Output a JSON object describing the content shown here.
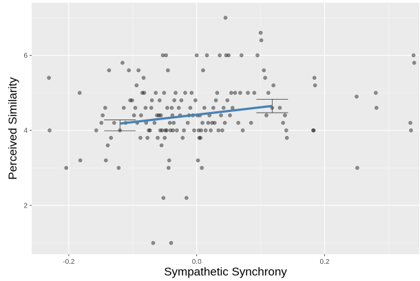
{
  "chart_data": {
    "type": "scatter",
    "title": "",
    "xlabel": "Sympathetic Synchrony",
    "ylabel": "Perceived Similarity",
    "xlim": [
      -0.258,
      0.348
    ],
    "ylim": [
      0.7,
      7.4
    ],
    "x_ticks": [
      -0.2,
      0.0,
      0.2
    ],
    "x_tick_labels": [
      "-0.2",
      "0.0",
      "0.2"
    ],
    "y_ticks": [
      2,
      4,
      6
    ],
    "y_tick_labels": [
      "2",
      "4",
      "6"
    ],
    "grid": true,
    "panel_background": "#ebebeb",
    "point_color": "#000000",
    "point_opacity": 0.42,
    "fit_line": {
      "color": "#4682b4",
      "start": [
        -0.12,
        4.18
      ],
      "end": [
        0.118,
        4.65
      ]
    },
    "error_bars": [
      {
        "x": -0.12,
        "low": 3.99,
        "high": 4.28
      },
      {
        "x": 0.118,
        "low": 4.47,
        "high": 4.83
      }
    ],
    "points": [
      [
        -0.231,
        5.4
      ],
      [
        -0.23,
        4.0
      ],
      [
        -0.204,
        3.0
      ],
      [
        -0.183,
        5.0
      ],
      [
        -0.182,
        3.2
      ],
      [
        -0.157,
        4.0
      ],
      [
        -0.149,
        4.2
      ],
      [
        -0.147,
        4.4
      ],
      [
        -0.143,
        4.6
      ],
      [
        -0.142,
        3.2
      ],
      [
        -0.139,
        3.6
      ],
      [
        -0.137,
        5.6
      ],
      [
        -0.134,
        3.8
      ],
      [
        -0.129,
        4.2
      ],
      [
        -0.122,
        3.0
      ],
      [
        -0.12,
        4.0
      ],
      [
        -0.116,
        5.8
      ],
      [
        -0.114,
        4.6
      ],
      [
        -0.111,
        4.2
      ],
      [
        -0.106,
        5.6
      ],
      [
        -0.104,
        4.8
      ],
      [
        -0.101,
        4.8
      ],
      [
        -0.098,
        4.4
      ],
      [
        -0.096,
        4.6
      ],
      [
        -0.094,
        5.2
      ],
      [
        -0.093,
        4.2
      ],
      [
        -0.091,
        5.6
      ],
      [
        -0.088,
        3.8
      ],
      [
        -0.087,
        4.4
      ],
      [
        -0.085,
        5.0
      ],
      [
        -0.083,
        5.4
      ],
      [
        -0.082,
        5.0
      ],
      [
        -0.08,
        4.6
      ],
      [
        -0.079,
        4.2
      ],
      [
        -0.077,
        3.8
      ],
      [
        -0.075,
        4.0
      ],
      [
        -0.073,
        4.0
      ],
      [
        -0.071,
        4.6
      ],
      [
        -0.07,
        4.8
      ],
      [
        -0.068,
        1.0
      ],
      [
        -0.066,
        4.2
      ],
      [
        -0.064,
        5.0
      ],
      [
        -0.062,
        4.4
      ],
      [
        -0.061,
        3.8
      ],
      [
        -0.059,
        4.4
      ],
      [
        -0.058,
        4.8
      ],
      [
        -0.057,
        4.0
      ],
      [
        -0.056,
        4.4
      ],
      [
        -0.055,
        3.6
      ],
      [
        -0.054,
        4.0
      ],
      [
        -0.053,
        6.0
      ],
      [
        -0.052,
        2.2
      ],
      [
        -0.051,
        5.0
      ],
      [
        -0.05,
        3.8
      ],
      [
        -0.049,
        4.0
      ],
      [
        -0.048,
        6.0
      ],
      [
        -0.047,
        4.0
      ],
      [
        -0.046,
        4.6
      ],
      [
        -0.045,
        5.6
      ],
      [
        -0.044,
        3.0
      ],
      [
        -0.043,
        3.2
      ],
      [
        -0.042,
        4.2
      ],
      [
        -0.041,
        4.0
      ],
      [
        -0.04,
        1.0
      ],
      [
        -0.039,
        4.6
      ],
      [
        -0.038,
        4.4
      ],
      [
        -0.037,
        4.0
      ],
      [
        -0.036,
        4.2
      ],
      [
        -0.035,
        4.8
      ],
      [
        -0.033,
        5.0
      ],
      [
        -0.031,
        4.0
      ],
      [
        -0.028,
        4.6
      ],
      [
        -0.026,
        4.4
      ],
      [
        -0.024,
        4.8
      ],
      [
        -0.022,
        3.8
      ],
      [
        -0.02,
        4.0
      ],
      [
        -0.018,
        5.0
      ],
      [
        -0.016,
        2.2
      ],
      [
        -0.014,
        4.2
      ],
      [
        -0.012,
        4.4
      ],
      [
        -0.01,
        4.6
      ],
      [
        -0.008,
        5.0
      ],
      [
        -0.006,
        4.4
      ],
      [
        -0.004,
        4.0
      ],
      [
        -0.002,
        4.8
      ],
      [
        0.0,
        6.0
      ],
      [
        0.001,
        4.4
      ],
      [
        0.002,
        3.2
      ],
      [
        0.003,
        4.0
      ],
      [
        0.004,
        3.8
      ],
      [
        0.005,
        4.4
      ],
      [
        0.006,
        3.8
      ],
      [
        0.007,
        4.0
      ],
      [
        0.008,
        3.0
      ],
      [
        0.009,
        4.2
      ],
      [
        0.01,
        5.6
      ],
      [
        0.012,
        4.6
      ],
      [
        0.014,
        4.0
      ],
      [
        0.016,
        6.0
      ],
      [
        0.018,
        4.2
      ],
      [
        0.02,
        4.4
      ],
      [
        0.022,
        4.0
      ],
      [
        0.024,
        4.2
      ],
      [
        0.026,
        4.6
      ],
      [
        0.028,
        4.2
      ],
      [
        0.03,
        4.8
      ],
      [
        0.032,
        5.0
      ],
      [
        0.034,
        4.0
      ],
      [
        0.036,
        6.0
      ],
      [
        0.038,
        4.4
      ],
      [
        0.04,
        4.0
      ],
      [
        0.042,
        4.6
      ],
      [
        0.044,
        4.2
      ],
      [
        0.045,
        7.0
      ],
      [
        0.046,
        6.0
      ],
      [
        0.048,
        4.8
      ],
      [
        0.05,
        6.0
      ],
      [
        0.052,
        4.4
      ],
      [
        0.054,
        5.0
      ],
      [
        0.056,
        4.6
      ],
      [
        0.06,
        5.0
      ],
      [
        0.065,
        4.2
      ],
      [
        0.068,
        5.0
      ],
      [
        0.07,
        6.0
      ],
      [
        0.072,
        4.0
      ],
      [
        0.08,
        5.0
      ],
      [
        0.085,
        4.2
      ],
      [
        0.09,
        5.0
      ],
      [
        0.095,
        6.0
      ],
      [
        0.1,
        6.6
      ],
      [
        0.101,
        6.4
      ],
      [
        0.105,
        5.6
      ],
      [
        0.107,
        5.4
      ],
      [
        0.109,
        4.4
      ],
      [
        0.112,
        5.0
      ],
      [
        0.118,
        4.6
      ],
      [
        0.12,
        5.2
      ],
      [
        0.13,
        4.6
      ],
      [
        0.135,
        4.2
      ],
      [
        0.138,
        4.4
      ],
      [
        0.14,
        4.0
      ],
      [
        0.141,
        3.8
      ],
      [
        0.182,
        4.0
      ],
      [
        0.183,
        4.0
      ],
      [
        0.184,
        5.4
      ],
      [
        0.185,
        5.2
      ],
      [
        0.25,
        4.9
      ],
      [
        0.251,
        3.0
      ],
      [
        0.28,
        5.0
      ],
      [
        0.281,
        4.6
      ],
      [
        0.334,
        4.2
      ],
      [
        0.335,
        4.0
      ],
      [
        0.339,
        6.0
      ],
      [
        0.34,
        5.8
      ]
    ]
  }
}
